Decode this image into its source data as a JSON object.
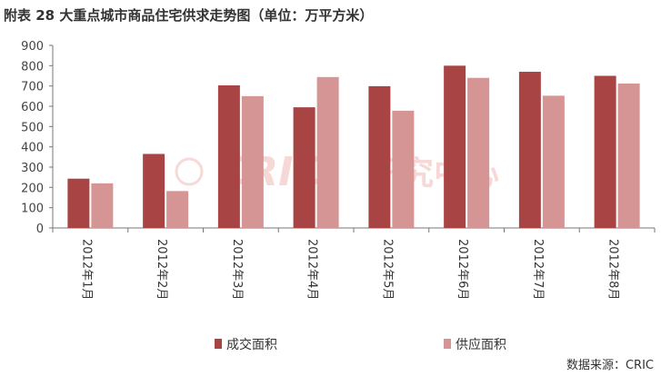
{
  "chart_data": {
    "type": "bar",
    "title": "附表 28 大重点城市商品住宅供求走势图（单位：万平方米）",
    "categories": [
      "2012年1月",
      "2012年2月",
      "2012年3月",
      "2012年4月",
      "2012年5月",
      "2012年6月",
      "2012年7月",
      "2012年8月"
    ],
    "series": [
      {
        "name": "成交面积",
        "values": [
          243,
          365,
          703,
          595,
          699,
          800,
          770,
          750
        ],
        "color": "#a94444"
      },
      {
        "name": "供应面积",
        "values": [
          220,
          182,
          650,
          744,
          578,
          740,
          652,
          712
        ],
        "color": "#d69595"
      }
    ],
    "ylim": [
      0,
      900
    ],
    "yticks": [
      "0",
      "100",
      "200",
      "300",
      "400",
      "500",
      "600",
      "700",
      "800",
      "900"
    ],
    "legend_position": "bottom",
    "grid": false
  },
  "watermark": {
    "brand": "CRIC",
    "brand_cn": "研究中心"
  },
  "source": "数据来源：CRIC"
}
